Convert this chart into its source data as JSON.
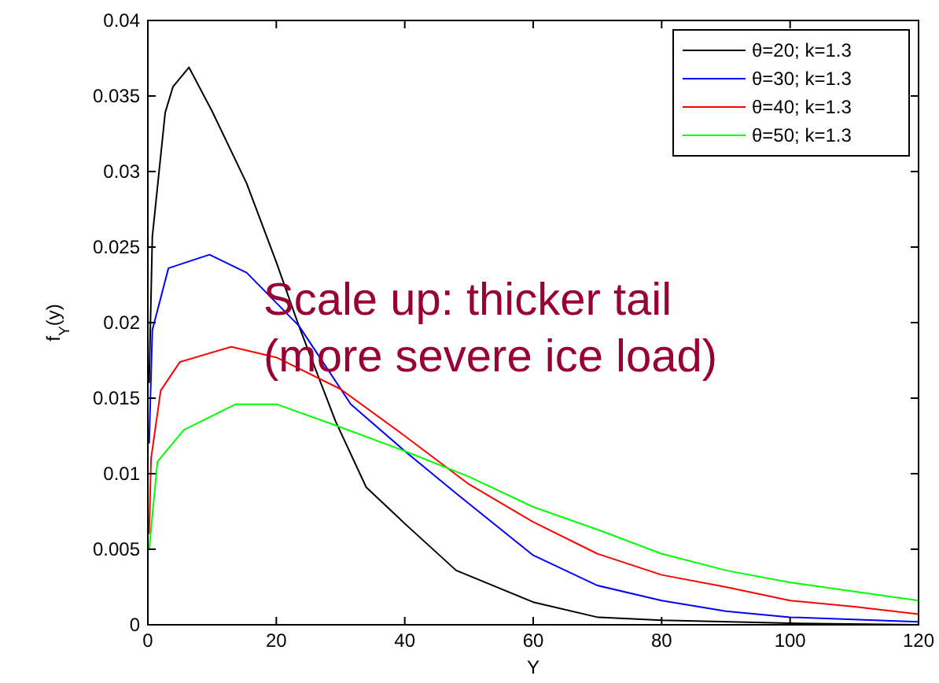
{
  "chart_data": {
    "type": "line",
    "xlabel": "Y",
    "ylabel": "f$_{Y}$(y)",
    "xlim": [
      0,
      120
    ],
    "ylim": [
      0,
      0.04
    ],
    "xticks": [
      0,
      20,
      40,
      60,
      80,
      100,
      120
    ],
    "yticks": [
      0,
      0.005,
      0.01,
      0.015,
      0.02,
      0.025,
      0.03,
      0.035,
      0.04
    ],
    "legend": "top right",
    "grid": false,
    "marker": "none",
    "line_style": "solid",
    "annotations": [
      "Scale up: thicker tail\n(more severe ice load)"
    ],
    "series": [
      {
        "name": "θ=20; k=1.3",
        "color": "#000000",
        "x": [
          0.2,
          0.7,
          2.7,
          3.9,
          6.4,
          10,
          15.4,
          20,
          23.5,
          29.2,
          34,
          40,
          48,
          60,
          70,
          80,
          100,
          120
        ],
        "values": [
          0.016,
          0.0257,
          0.0339,
          0.0356,
          0.0369,
          0.034,
          0.0292,
          0.024,
          0.0198,
          0.0135,
          0.0091,
          0.0067,
          0.0036,
          0.0015,
          0.0005,
          0.0003,
          0.0001,
          0
        ]
      },
      {
        "name": "θ=30; k=1.3",
        "color": "#0000ff",
        "x": [
          0.2,
          0.7,
          3.2,
          9.6,
          15.4,
          23.5,
          31.6,
          40,
          48,
          60,
          70,
          80,
          90,
          100,
          120
        ],
        "values": [
          0.012,
          0.0195,
          0.0236,
          0.0245,
          0.0233,
          0.0198,
          0.0146,
          0.0115,
          0.0087,
          0.0046,
          0.0026,
          0.0016,
          0.0009,
          0.0005,
          0.0002
        ]
      },
      {
        "name": "θ=40; k=1.3",
        "color": "#ff0000",
        "x": [
          0.2,
          0.5,
          2,
          5,
          13,
          20,
          30,
          40,
          50,
          60,
          70,
          80,
          90,
          100,
          110,
          120
        ],
        "values": [
          0.006,
          0.011,
          0.0155,
          0.0174,
          0.0184,
          0.0177,
          0.0156,
          0.0125,
          0.0093,
          0.0068,
          0.0047,
          0.0033,
          0.0025,
          0.0016,
          0.0012,
          0.0007
        ]
      },
      {
        "name": "θ=50; k=1.3",
        "color": "#00ff00",
        "x": [
          0.2,
          1.5,
          5.6,
          13.7,
          20,
          29.2,
          40,
          50,
          60,
          70,
          80,
          90,
          100,
          110,
          120
        ],
        "values": [
          0.005,
          0.0108,
          0.0129,
          0.0146,
          0.0146,
          0.0132,
          0.0115,
          0.0098,
          0.0078,
          0.0063,
          0.0047,
          0.0036,
          0.0028,
          0.0022,
          0.0016
        ]
      }
    ]
  }
}
